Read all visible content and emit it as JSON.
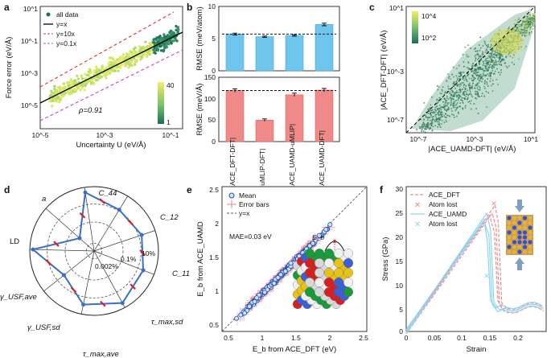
{
  "panels": {
    "a": {
      "label": "a",
      "ylabel": "Force error (eV/Å)",
      "xlabel": "Uncertainty U (eV/Å)",
      "xticks": [
        "10^-5",
        "10^-3",
        "10^-1"
      ],
      "yticks": [
        "10^1",
        "10^-1",
        "10^-3",
        "10^-5"
      ],
      "legend": [
        "all data",
        "y=x",
        "y=10x",
        "y=0.1x"
      ],
      "rho": "ρ=0.91",
      "colorbar": [
        "40",
        "1"
      ]
    },
    "b": {
      "label": "b",
      "top_ylabel": "RMSE (meV/atom)",
      "bottom_ylabel": "RMSE (meV/Å)",
      "top_yticks": [
        "10",
        "5",
        "0"
      ],
      "bottom_yticks": [
        "150",
        "100",
        "50",
        "0"
      ],
      "categories": [
        "|ACE_DFT-DFT|",
        "|uMLIP-DFT|",
        "|ACE_UAMD-uMLIP|",
        "|ACE_UAMD-DFT|"
      ],
      "top_values": [
        5.7,
        5.3,
        5.5,
        7.2
      ],
      "top_errors": [
        0.15,
        0.1,
        0.12,
        0.2
      ],
      "top_ref": 5.7,
      "bottom_values": [
        119,
        50,
        109,
        120
      ],
      "bottom_errors": [
        2,
        1,
        2,
        2
      ],
      "bottom_ref": 119
    },
    "c": {
      "label": "c",
      "ylabel": "|ACE_DFT-DFT| (eV/Å)",
      "xlabel": "|ACE_UAMD-DFT| (eV/Å)",
      "xticks": [
        "10^-7",
        "10^-3",
        "10^1"
      ],
      "yticks": [
        "10^1",
        "10^-3",
        "10^-7"
      ],
      "colorbar": [
        "10^4",
        "10^2"
      ]
    },
    "d": {
      "label": "d",
      "axes": [
        "C_44",
        "C_12",
        "C_11",
        "τ_max,sd",
        "τ_max,ave",
        "γ_USF,sd",
        "γ_USF,ave",
        "LD",
        "a"
      ],
      "rings": [
        "10%",
        "0.1%",
        "0.002%"
      ]
    },
    "e": {
      "label": "e",
      "ylabel": "E_b from ACE_UAMD",
      "xlabel": "E_b from ACE_DFT (eV)",
      "xticks": [
        "0.5",
        "1",
        "1.5",
        "2",
        "2.5"
      ],
      "yticks": [
        "2.5",
        "2",
        "1.5",
        "1",
        "0.5"
      ],
      "legend": [
        "Mean",
        "Error bars",
        "y=x"
      ],
      "mae": "MAE=0.03 eV",
      "inset_label": "E_b"
    },
    "f": {
      "label": "f",
      "ylabel": "Stress (GPa)",
      "xlabel": "Strain",
      "xticks": [
        "0",
        "0.05",
        "0.1",
        "0.15",
        "0.2"
      ],
      "yticks": [
        "30",
        "25",
        "20",
        "15",
        "10",
        "5",
        "0"
      ],
      "legend": [
        "ACE_DFT",
        "Atom lost",
        "ACE_UAMD",
        "Atom lost"
      ]
    }
  },
  "colors": {
    "blue_bar": "#6ec6ec",
    "red_bar": "#f08a88",
    "radar_line": "#3a6fc9",
    "red_marker": "#e02020",
    "green_dark": "#1a6e5a",
    "yellow": "#f2ef6a",
    "f_red": "#ef8a8a",
    "f_blue": "#8fd3f2"
  }
}
